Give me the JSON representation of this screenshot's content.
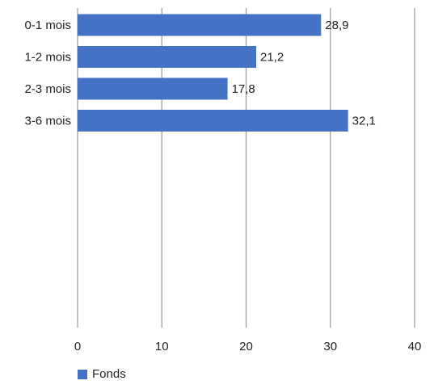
{
  "chart_data": {
    "type": "bar",
    "orientation": "horizontal",
    "categories": [
      "0-1 mois",
      "1-2 mois",
      "2-3 mois",
      "3-6 mois"
    ],
    "series": [
      {
        "name": "Fonds",
        "values": [
          28.9,
          21.2,
          17.8,
          32.1
        ]
      }
    ],
    "value_labels": [
      "28,9",
      "21,2",
      "17,8",
      "32,1"
    ],
    "x_ticks": [
      "0",
      "10",
      "20",
      "30",
      "40"
    ],
    "xlim": [
      0,
      40
    ],
    "title": "",
    "xlabel": "",
    "ylabel": "",
    "grid": true,
    "legend_position": "bottom-left"
  },
  "colors": {
    "bar": "#4472C4",
    "grid": "#9e9e9e",
    "text": "#222222"
  }
}
